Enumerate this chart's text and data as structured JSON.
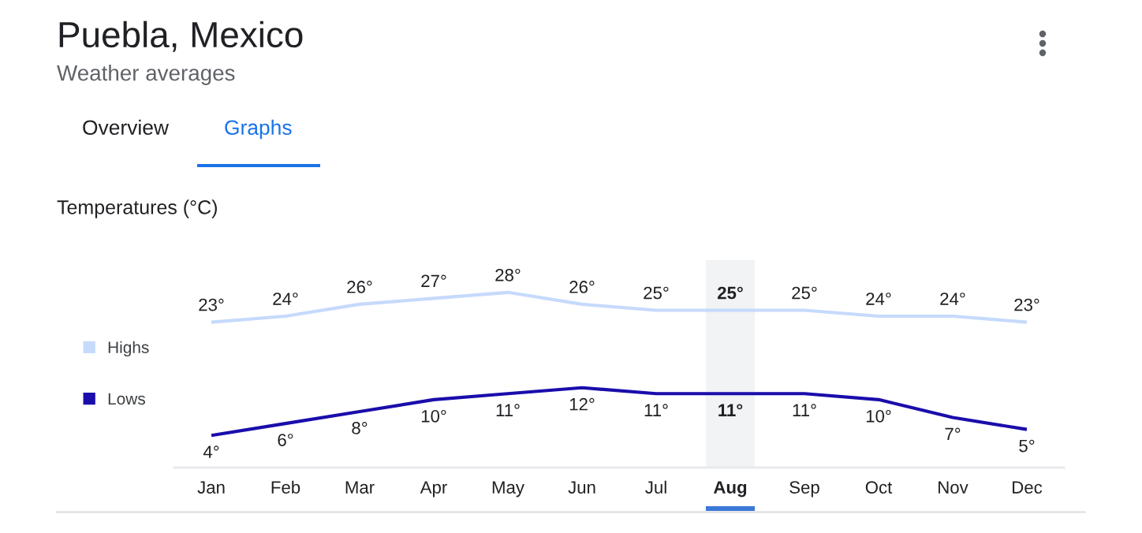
{
  "chart_data": {
    "type": "line",
    "title": "Puebla, Mexico",
    "subtitle": "Weather averages",
    "annotations": [
      "Overview",
      "Graphs",
      "Temperatures (°C)"
    ],
    "categories": [
      "Jan",
      "Feb",
      "Mar",
      "Apr",
      "May",
      "Jun",
      "Jul",
      "Aug",
      "Sep",
      "Oct",
      "Nov",
      "Dec"
    ],
    "series": [
      {
        "name": "Highs",
        "color": "#c6dafc",
        "values": [
          23,
          24,
          26,
          27,
          28,
          26,
          25,
          25,
          25,
          24,
          24,
          23
        ],
        "value_labels": [
          "23°",
          "24°",
          "26°",
          "27°",
          "28°",
          "26°",
          "25°",
          "25°",
          "25°",
          "24°",
          "24°",
          "23°"
        ]
      },
      {
        "name": "Lows",
        "color": "#1a0dab",
        "values": [
          4,
          6,
          8,
          10,
          11,
          12,
          11,
          11,
          11,
          10,
          7,
          5
        ],
        "value_labels": [
          "4°",
          "6°",
          "8°",
          "10°",
          "11°",
          "12°",
          "11°",
          "11°",
          "11°",
          "10°",
          "7°",
          "5°"
        ]
      }
    ],
    "legend": "left",
    "tick_labels": "x",
    "grid": false,
    "bands": [
      {
        "axis": "x",
        "from": "Aug",
        "to": "Aug",
        "color": "#f1f3f4"
      }
    ]
  }
}
